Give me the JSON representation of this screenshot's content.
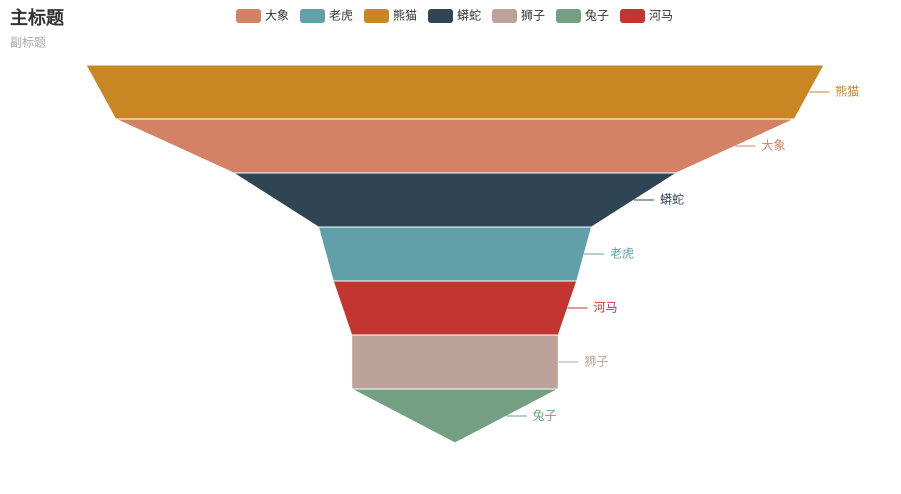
{
  "chart_data": {
    "type": "funnel",
    "title": "主标题",
    "subtitle": "副标题",
    "series": [
      {
        "name": "大象",
        "color": "#d48265",
        "value": 92
      },
      {
        "name": "老虎",
        "color": "#61a0a8",
        "value": 37
      },
      {
        "name": "熊猫",
        "color": "#ca8622",
        "value": 100
      },
      {
        "name": "蟒蛇",
        "color": "#2f4554",
        "value": 60
      },
      {
        "name": "狮子",
        "color": "#bda29a",
        "value": 28
      },
      {
        "name": "兔子",
        "color": "#749f83",
        "value": 28
      },
      {
        "name": "河马",
        "color": "#c23531",
        "value": 33
      }
    ],
    "xlim": [
      0,
      100
    ]
  }
}
